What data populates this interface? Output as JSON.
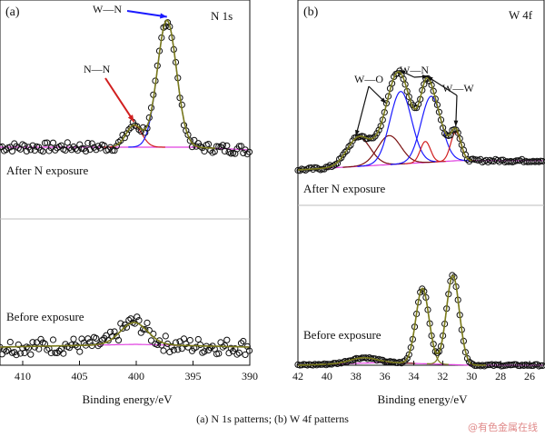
{
  "chart_data": [
    {
      "type": "scatter",
      "panel_label": "(a)",
      "title": "N 1s",
      "xlabel": "Binding energy/eV",
      "xlim": [
        412,
        390
      ],
      "xticks": [
        410,
        405,
        400,
        395,
        390
      ],
      "grid": false,
      "series_colors": {
        "data": "#111111",
        "fit": "#7a7a1a",
        "background": "#e040e0",
        "component_wn": "#1a1aff",
        "component_nn": "#d11f1f"
      },
      "spectra": [
        {
          "label": "After N exposure",
          "background": [
            [
              412,
              0.0
            ],
            [
              395,
              0.0
            ],
            [
              390,
              -0.02
            ]
          ],
          "components": [
            {
              "name": "N—N",
              "center": 400.2,
              "amplitude": 0.16,
              "width": 0.7,
              "color": "#d11f1f"
            },
            {
              "name": "W—N",
              "center": 397.3,
              "amplitude": 0.93,
              "width": 0.85,
              "color": "#1a1aff"
            }
          ],
          "annotations": [
            {
              "text": "N—N",
              "target_x": 400.2,
              "color": "#d11f1f"
            },
            {
              "text": "W—N",
              "target_x": 397.3,
              "color": "#1a1aff"
            }
          ]
        },
        {
          "label": "Before exposure",
          "background": [
            [
              412,
              0.0
            ],
            [
              400,
              0.02
            ],
            [
              390,
              0.0
            ]
          ],
          "components": [
            {
              "name": "",
              "center": 400.2,
              "amplitude": 0.16,
              "width": 1.2,
              "color": "#7a7a1a"
            }
          ],
          "annotations": []
        }
      ]
    },
    {
      "type": "scatter",
      "panel_label": "(b)",
      "title": "W 4f",
      "xlabel": "Binding energy/eV",
      "xlim": [
        42,
        25
      ],
      "xticks": [
        42,
        40,
        38,
        36,
        34,
        32,
        30,
        28,
        26
      ],
      "grid": false,
      "series_colors": {
        "data": "#111111",
        "fit": "#7a7a1a",
        "background": "#e040e0",
        "component_wo": "#7a1010",
        "component_wn": "#1a1aff",
        "component_ww": "#d11f1f"
      },
      "spectra": [
        {
          "label": "After N exposure",
          "background": [
            [
              42,
              0.0
            ],
            [
              31,
              0.07
            ],
            [
              30,
              0.07
            ]
          ],
          "components": [
            {
              "name": "W—O",
              "center": 37.8,
              "amplitude": 0.22,
              "width": 0.8,
              "color": "#7a1010"
            },
            {
              "name": "W—O",
              "center": 35.7,
              "amplitude": 0.22,
              "width": 0.8,
              "color": "#7a1010"
            },
            {
              "name": "W—N",
              "center": 34.9,
              "amplitude": 0.55,
              "width": 0.75,
              "color": "#1a1aff"
            },
            {
              "name": "W—N",
              "center": 32.8,
              "amplitude": 0.5,
              "width": 0.7,
              "color": "#1a1aff"
            },
            {
              "name": "W—W",
              "center": 33.2,
              "amplitude": 0.16,
              "width": 0.35,
              "color": "#d11f1f"
            },
            {
              "name": "W—W",
              "center": 31.1,
              "amplitude": 0.22,
              "width": 0.35,
              "color": "#d11f1f"
            }
          ],
          "annotations": [
            {
              "text": "W—O",
              "targets": [
                38.0,
                35.9
              ]
            },
            {
              "text": "W—N",
              "targets": [
                35.0,
                33.0
              ]
            },
            {
              "text": "W—W",
              "targets": [
                33.1,
                31.1
              ]
            }
          ]
        },
        {
          "label": "Before exposure",
          "background": [
            [
              42,
              0.0
            ],
            [
              36,
              0.03
            ],
            [
              30,
              0.0
            ]
          ],
          "components": [
            {
              "name": "",
              "center": 37.5,
              "amplitude": 0.06,
              "width": 0.9,
              "color": "#7a1010"
            },
            {
              "name": "",
              "center": 33.4,
              "amplitude": 0.83,
              "width": 0.45,
              "color": "#7a7a1a"
            },
            {
              "name": "",
              "center": 31.3,
              "amplitude": 0.98,
              "width": 0.45,
              "color": "#7a7a1a"
            }
          ],
          "annotations": []
        }
      ]
    }
  ],
  "caption": "(a) N 1s patterns; (b) W 4f patterns",
  "watermark": "@有色金属在线"
}
